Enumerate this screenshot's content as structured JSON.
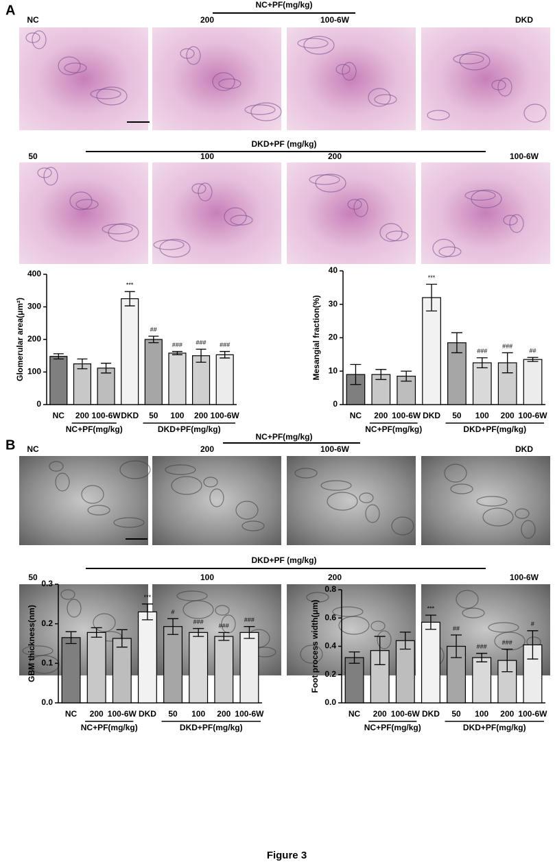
{
  "panel_a": {
    "label": "A",
    "group_top": "NC+PF(mg/kg)",
    "row1": [
      "NC",
      "200",
      "100-6W",
      "DKD"
    ],
    "group_bottom": "DKD+PF (mg/kg)",
    "row2": [
      "50",
      "100",
      "200",
      "100-6W"
    ]
  },
  "panel_b": {
    "label": "B",
    "group_top": "NC+PF(mg/kg)",
    "row1": [
      "NC",
      "200",
      "100-6W",
      "DKD"
    ],
    "group_bottom": "DKD+PF (mg/kg)",
    "row2": [
      "50",
      "100",
      "200",
      "100-6W"
    ]
  },
  "caption": "Figure 3",
  "chart_data": [
    {
      "type": "bar",
      "y_label": "Glomerular area(μm²)",
      "categories": [
        "NC",
        "200",
        "100-6W",
        "DKD",
        "50",
        "100",
        "200",
        "100-6W"
      ],
      "values": [
        148,
        125,
        112,
        325,
        200,
        158,
        150,
        153
      ],
      "errors": [
        8,
        15,
        15,
        22,
        10,
        5,
        20,
        10
      ],
      "significance": [
        null,
        null,
        null,
        "***",
        "##",
        "###",
        "###",
        "###"
      ],
      "colors": [
        "#7f7f7f",
        "#c8c8c8",
        "#bdbdbd",
        "#f2f2f2",
        "#a6a6a6",
        "#d9d9d9",
        "#cfcfcf",
        "#ececec"
      ],
      "groups": [
        "NC+PF(mg/kg)",
        "DKD+PF(mg/kg)"
      ],
      "ylim": [
        0,
        400
      ],
      "yticks": [
        0,
        100,
        200,
        300,
        400
      ]
    },
    {
      "type": "bar",
      "y_label": "Mesangial fraction(%)",
      "categories": [
        "NC",
        "200",
        "100-6W",
        "DKD",
        "50",
        "100",
        "200",
        "100-6W"
      ],
      "values": [
        9,
        9,
        8.5,
        32,
        18.5,
        12.5,
        12.5,
        13.5
      ],
      "errors": [
        3,
        1.5,
        1.5,
        4,
        3,
        1.5,
        3,
        0.6
      ],
      "significance": [
        null,
        null,
        null,
        "***",
        null,
        "###",
        "###",
        "##"
      ],
      "colors": [
        "#7f7f7f",
        "#c8c8c8",
        "#bdbdbd",
        "#f2f2f2",
        "#a6a6a6",
        "#d9d9d9",
        "#cfcfcf",
        "#ececec"
      ],
      "groups": [
        "NC+PF(mg/kg)",
        "DKD+PF(mg/kg)"
      ],
      "ylim": [
        0,
        40
      ],
      "yticks": [
        0,
        10,
        20,
        30,
        40
      ]
    },
    {
      "type": "bar",
      "y_label": "GBM thickness(nm)",
      "categories": [
        "NC",
        "200",
        "100-6W",
        "DKD",
        "50",
        "100",
        "200",
        "100-6W"
      ],
      "values": [
        0.165,
        0.178,
        0.163,
        0.23,
        0.193,
        0.178,
        0.168,
        0.178
      ],
      "errors": [
        0.015,
        0.012,
        0.022,
        0.02,
        0.02,
        0.01,
        0.01,
        0.015
      ],
      "significance": [
        null,
        null,
        null,
        "***",
        "#",
        "###",
        "###",
        "###"
      ],
      "colors": [
        "#7f7f7f",
        "#c8c8c8",
        "#bdbdbd",
        "#f2f2f2",
        "#a6a6a6",
        "#d9d9d9",
        "#cfcfcf",
        "#ececec"
      ],
      "groups": [
        "NC+PF(mg/kg)",
        "DKD+PF(mg/kg)"
      ],
      "ylim": [
        0,
        0.3
      ],
      "yticks": [
        {
          "value": 0,
          "label": "0.0"
        },
        0.1,
        0.2,
        0.3
      ]
    },
    {
      "type": "bar",
      "y_label": "Foot process width(μm)",
      "categories": [
        "NC",
        "200",
        "100-6W",
        "DKD",
        "50",
        "100",
        "200",
        "100-6W"
      ],
      "values": [
        0.32,
        0.37,
        0.44,
        0.57,
        0.4,
        0.32,
        0.3,
        0.41
      ],
      "errors": [
        0.04,
        0.1,
        0.06,
        0.05,
        0.08,
        0.03,
        0.08,
        0.1
      ],
      "significance": [
        null,
        null,
        null,
        "***",
        "##",
        "###",
        "###",
        "#"
      ],
      "colors": [
        "#7f7f7f",
        "#c8c8c8",
        "#bdbdbd",
        "#f2f2f2",
        "#a6a6a6",
        "#d9d9d9",
        "#cfcfcf",
        "#ececec"
      ],
      "groups": [
        "NC+PF(mg/kg)",
        "DKD+PF(mg/kg)"
      ],
      "ylim": [
        0,
        0.8
      ],
      "yticks": [
        {
          "value": 0,
          "label": "0.0"
        },
        {
          "value": 0.2,
          "label": "0.2"
        },
        {
          "value": 0.4,
          "label": "0.4"
        },
        {
          "value": 0.6,
          "label": "0.6"
        },
        {
          "value": 0.8,
          "label": "0.8"
        }
      ]
    }
  ]
}
